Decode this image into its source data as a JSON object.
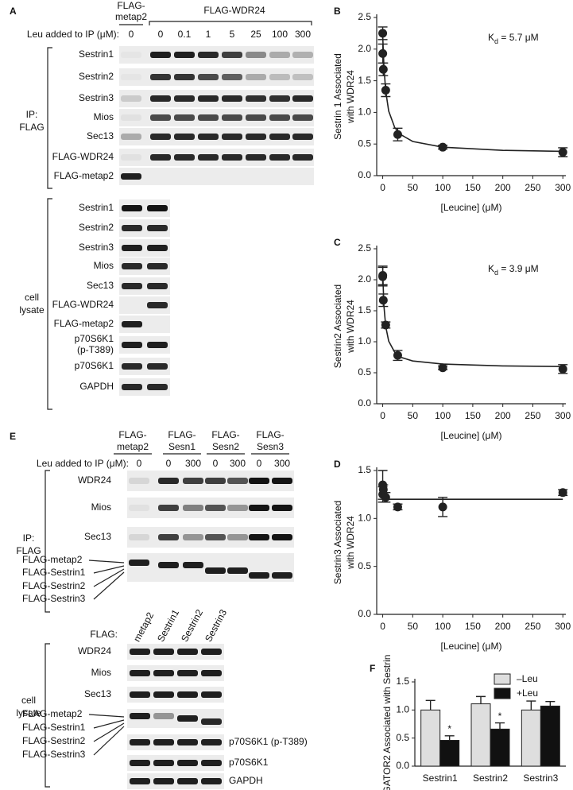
{
  "panels": {
    "A": {
      "label": "A",
      "lane_header": {
        "control": [
          "FLAG-",
          "metap2"
        ],
        "group": "FLAG-WDR24"
      },
      "leu_label": "Leu added to IP (μM):",
      "lanes": [
        "0",
        "0",
        "0.1",
        "1",
        "5",
        "25",
        "100",
        "300"
      ],
      "ip": {
        "label": [
          "IP:",
          "FLAG"
        ],
        "rows": [
          "Sestrin1",
          "Sestrin2",
          "Sestrin3",
          "Mios",
          "Sec13",
          "FLAG-WDR24",
          "FLAG-metap2"
        ]
      },
      "lysate": {
        "label": [
          "cell",
          "lysate"
        ],
        "rows": [
          "Sestrin1",
          "Sestrin2",
          "Sestrin3",
          "Mios",
          "Sec13",
          "FLAG-WDR24",
          "FLAG-metap2",
          [
            "p70S6K1",
            "(p-T389)"
          ],
          "p70S6K1",
          "GAPDH"
        ]
      }
    },
    "E": {
      "label": "E",
      "lane_header": [
        [
          "FLAG-",
          "metap2"
        ],
        [
          "FLAG-",
          "Sesn1"
        ],
        [
          "FLAG-",
          "Sesn2"
        ],
        [
          "FLAG-",
          "Sesn3"
        ]
      ],
      "leu_label": "Leu added to IP (μM):",
      "lanes": [
        "0",
        "0",
        "300",
        "0",
        "300",
        "0",
        "300"
      ],
      "ip": {
        "label": [
          "IP:",
          "FLAG"
        ],
        "rows": [
          "WDR24",
          "Mios",
          "Sec13"
        ],
        "flag_labels": [
          "FLAG-metap2",
          "FLAG-Sestrin1",
          "FLAG-Sestrin2",
          "FLAG-Sestrin3"
        ]
      },
      "lysate": {
        "flag_label": "FLAG:",
        "lanes": [
          "metap2",
          "Sestrin1",
          "Sestrin2",
          "Sestrin3"
        ],
        "label": [
          "cell",
          "lysate"
        ],
        "rows": [
          "WDR24",
          "Mios",
          "Sec13"
        ],
        "flag_labels": [
          "FLAG-metap2",
          "FLAG-Sestrin1",
          "FLAG-Sestrin2",
          "FLAG-Sestrin3"
        ],
        "right_rows": [
          "p70S6K1 (p-T389)",
          "p70S6K1",
          "GAPDH"
        ]
      }
    }
  },
  "chart_data": [
    {
      "type": "scatter",
      "panel": "B",
      "ylabel": [
        "Sestrin 1 Associated",
        "with WDR24"
      ],
      "xlabel": "[Leucine] (μM)",
      "annotation": [
        "K",
        "d",
        " = 5.7 μM"
      ],
      "color": "#222222",
      "x": [
        0,
        0.1,
        1,
        5,
        25,
        100,
        300
      ],
      "values": [
        2.25,
        1.93,
        1.68,
        1.35,
        0.65,
        0.45,
        0.37
      ],
      "errors": [
        0.1,
        0.15,
        0.1,
        0.1,
        0.1,
        0.03,
        0.07
      ],
      "fit": {
        "x": [
          0,
          2,
          5,
          10,
          20,
          30,
          50,
          100,
          200,
          300
        ],
        "values": [
          2.2,
          1.72,
          1.34,
          1.02,
          0.76,
          0.65,
          0.54,
          0.45,
          0.4,
          0.385
        ]
      },
      "xlim": [
        -10,
        305
      ],
      "xticks": [
        0,
        50,
        100,
        150,
        200,
        250,
        300
      ],
      "ylim": [
        0,
        2.5
      ],
      "yticks": [
        {
          "value": 0,
          "label": "0.0"
        },
        0.5,
        {
          "value": 1,
          "label": "1.0"
        },
        1.5,
        {
          "value": 2,
          "label": "2.0"
        },
        2.5
      ]
    },
    {
      "type": "scatter",
      "panel": "C",
      "ylabel": [
        "Sestrin2 Associated",
        "with WDR24"
      ],
      "xlabel": "[Leucine] (μM)",
      "annotation": [
        "K",
        "d",
        " = 3.9 μM"
      ],
      "color": "#222222",
      "x": [
        0,
        0.1,
        1,
        5,
        25,
        100,
        300
      ],
      "values": [
        2.05,
        2.07,
        1.67,
        1.27,
        0.78,
        0.58,
        0.56
      ],
      "errors": [
        0.15,
        0.15,
        0.1,
        0.05,
        0.08,
        0.03,
        0.07
      ],
      "fit": {
        "x": [
          0,
          2,
          5,
          10,
          20,
          30,
          50,
          100,
          200,
          300
        ],
        "values": [
          2.1,
          1.58,
          1.25,
          1.01,
          0.83,
          0.75,
          0.69,
          0.64,
          0.61,
          0.6
        ]
      },
      "xlim": [
        -10,
        305
      ],
      "xticks": [
        0,
        50,
        100,
        150,
        200,
        250,
        300
      ],
      "ylim": [
        0,
        2.5
      ],
      "yticks": [
        {
          "value": 0,
          "label": "0.0"
        },
        0.5,
        {
          "value": 1,
          "label": "1.0"
        },
        1.5,
        {
          "value": 2,
          "label": "2.0"
        },
        2.5
      ]
    },
    {
      "type": "scatter",
      "panel": "D",
      "ylabel": [
        "Sestrin3 Associated",
        "with WDR24"
      ],
      "xlabel": "[Leucine] (μM)",
      "color": "#222222",
      "x": [
        0,
        0.1,
        1,
        5,
        25,
        100,
        300
      ],
      "values": [
        1.35,
        1.25,
        1.3,
        1.22,
        1.12,
        1.12,
        1.27
      ],
      "errors": [
        0.15,
        0.08,
        0.05,
        0.05,
        0.03,
        0.1,
        0.03
      ],
      "fit": {
        "x": [
          0,
          300
        ],
        "values": [
          1.2,
          1.2
        ]
      },
      "xlim": [
        -10,
        305
      ],
      "xticks": [
        0,
        50,
        100,
        150,
        200,
        250,
        300
      ],
      "ylim": [
        0,
        1.5
      ],
      "yticks": [
        {
          "value": 0,
          "label": "0.0"
        },
        0.5,
        {
          "value": 1,
          "label": "1.0"
        },
        1.5
      ]
    },
    {
      "type": "bar",
      "panel": "F",
      "ylabel": "GATOR2 Associated with Sestrin",
      "categories": [
        "Sestrin1",
        "Sestrin2",
        "Sestrin3"
      ],
      "series": [
        {
          "name": "–Leu",
          "color": "#dedede",
          "values": [
            1.0,
            1.11,
            1.0
          ],
          "errors": [
            0.17,
            0.13,
            0.16
          ]
        },
        {
          "name": "+Leu",
          "color": "#111111",
          "values": [
            0.46,
            0.66,
            1.07
          ],
          "errors": [
            0.08,
            0.11,
            0.08
          ],
          "annotations": [
            "*",
            "*",
            null
          ]
        }
      ],
      "ylim": [
        0,
        1.5
      ],
      "yticks": [
        {
          "value": 0,
          "label": "0.0"
        },
        0.5,
        {
          "value": 1,
          "label": "1.0"
        },
        1.5
      ]
    }
  ]
}
